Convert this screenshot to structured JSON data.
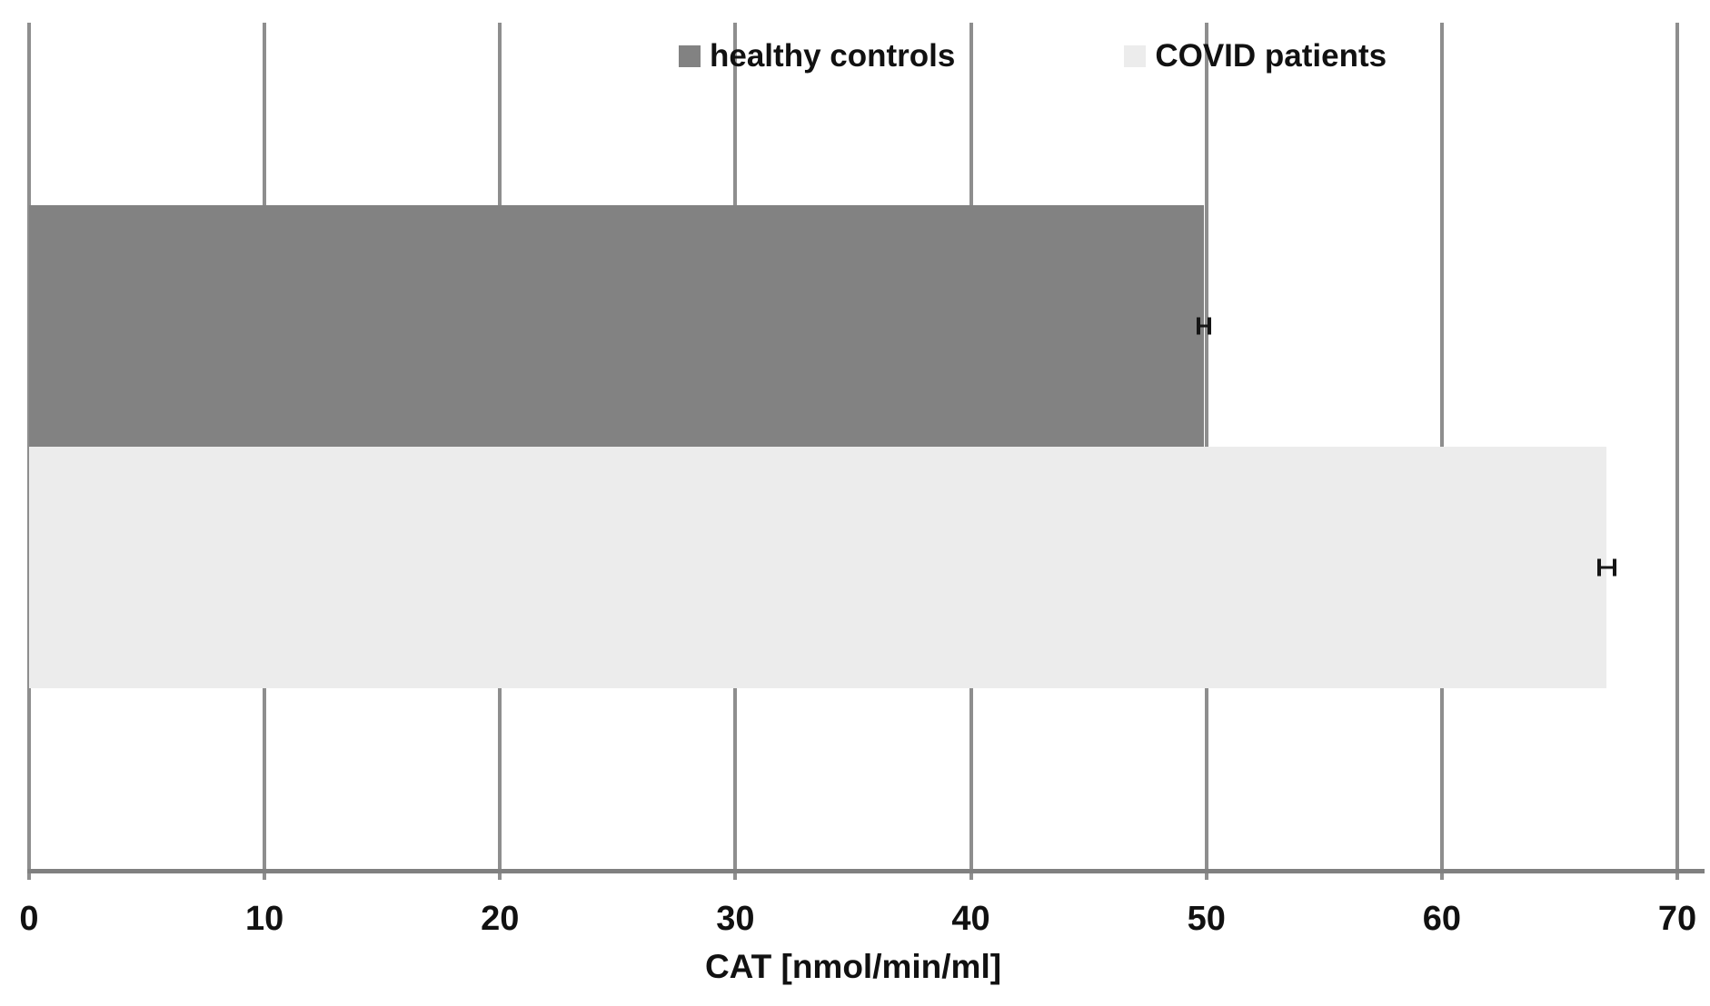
{
  "chart_data": {
    "type": "bar",
    "orientation": "horizontal",
    "title": "",
    "xlabel": "CAT [nmol/min/ml]",
    "ylabel": "",
    "xlim": [
      0,
      70
    ],
    "xticks": [
      0,
      10,
      20,
      30,
      40,
      50,
      60,
      70
    ],
    "grid": true,
    "legend_position": "top",
    "series": [
      {
        "name": "healthy controls",
        "value": 49.9,
        "error_bar": 0.3,
        "color": "#828282"
      },
      {
        "name": "COVID patients",
        "value": 67.0,
        "error_bar": 0.4,
        "color": "#ececec"
      }
    ]
  },
  "styles": {
    "background": "#ffffff",
    "gridline_color": "#8e8e8e",
    "axis_line_color": "#808080",
    "text_color": "#111111",
    "error_bar_color": "#151515"
  }
}
